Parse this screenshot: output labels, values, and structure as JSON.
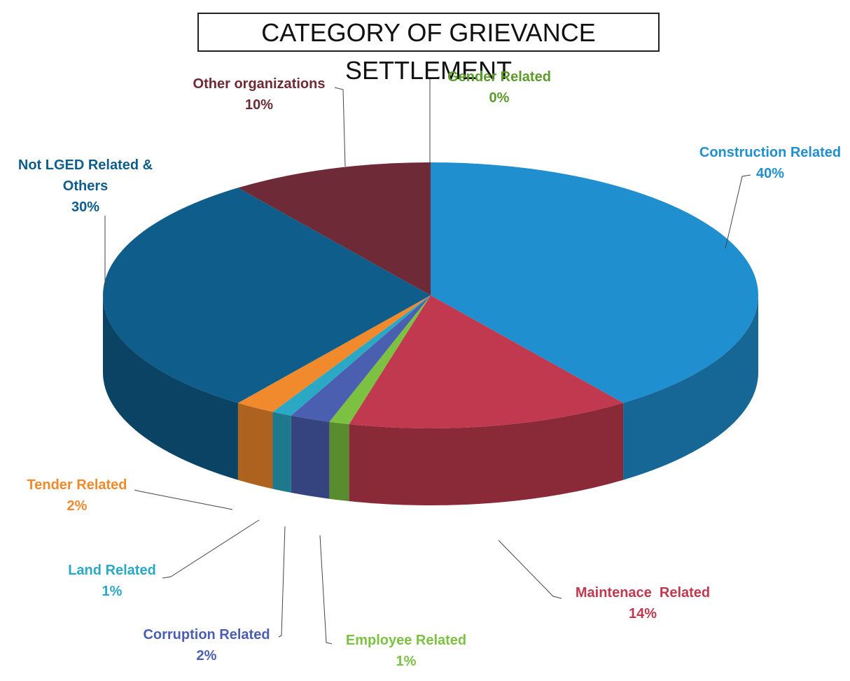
{
  "chart_data": {
    "type": "pie3d",
    "title": "CATEGORY OF GRIEVANCE SETTLEMENT",
    "categories": [
      "Construction Related",
      "Maintenace  Related",
      "Employee Related",
      "Corruption Related",
      "Land Related",
      "Tender Related",
      "Not LGED Related & Others",
      "Other organizations",
      "Gender Related"
    ],
    "values": [
      40,
      14,
      1,
      2,
      1,
      2,
      30,
      10,
      0
    ],
    "value_labels": [
      "40%",
      "14%",
      "1%",
      "2%",
      "1%",
      "2%",
      "30%",
      "10%",
      "0%"
    ],
    "colors": [
      "#1f8fcf",
      "#c0394e",
      "#7cc142",
      "#4a5fb0",
      "#2aa8c4",
      "#f08a2c",
      "#0e5d8a",
      "#6e2a36",
      "#5a9b2a"
    ]
  }
}
